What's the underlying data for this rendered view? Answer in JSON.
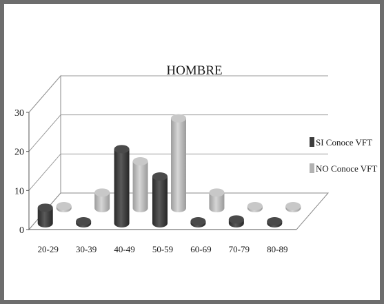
{
  "chart_data": {
    "type": "bar",
    "title": "HOMBRE",
    "categories": [
      "20-29",
      "30-39",
      "40-49",
      "50-59",
      "60-69",
      "70-79",
      "80-89"
    ],
    "series": [
      {
        "name": "SI Conoce VFT",
        "values": [
          4,
          0,
          19,
          12,
          0,
          1,
          0
        ],
        "color": "#3d3d3d"
      },
      {
        "name": "NO Conoce VFT",
        "values": [
          0,
          4,
          12,
          23,
          4,
          0,
          0
        ],
        "color": "#b2b2b2"
      }
    ],
    "ylim": [
      0,
      30
    ],
    "yticks": [
      0,
      10,
      20,
      30
    ],
    "grid": true,
    "legend": "right",
    "projection": "3d"
  }
}
